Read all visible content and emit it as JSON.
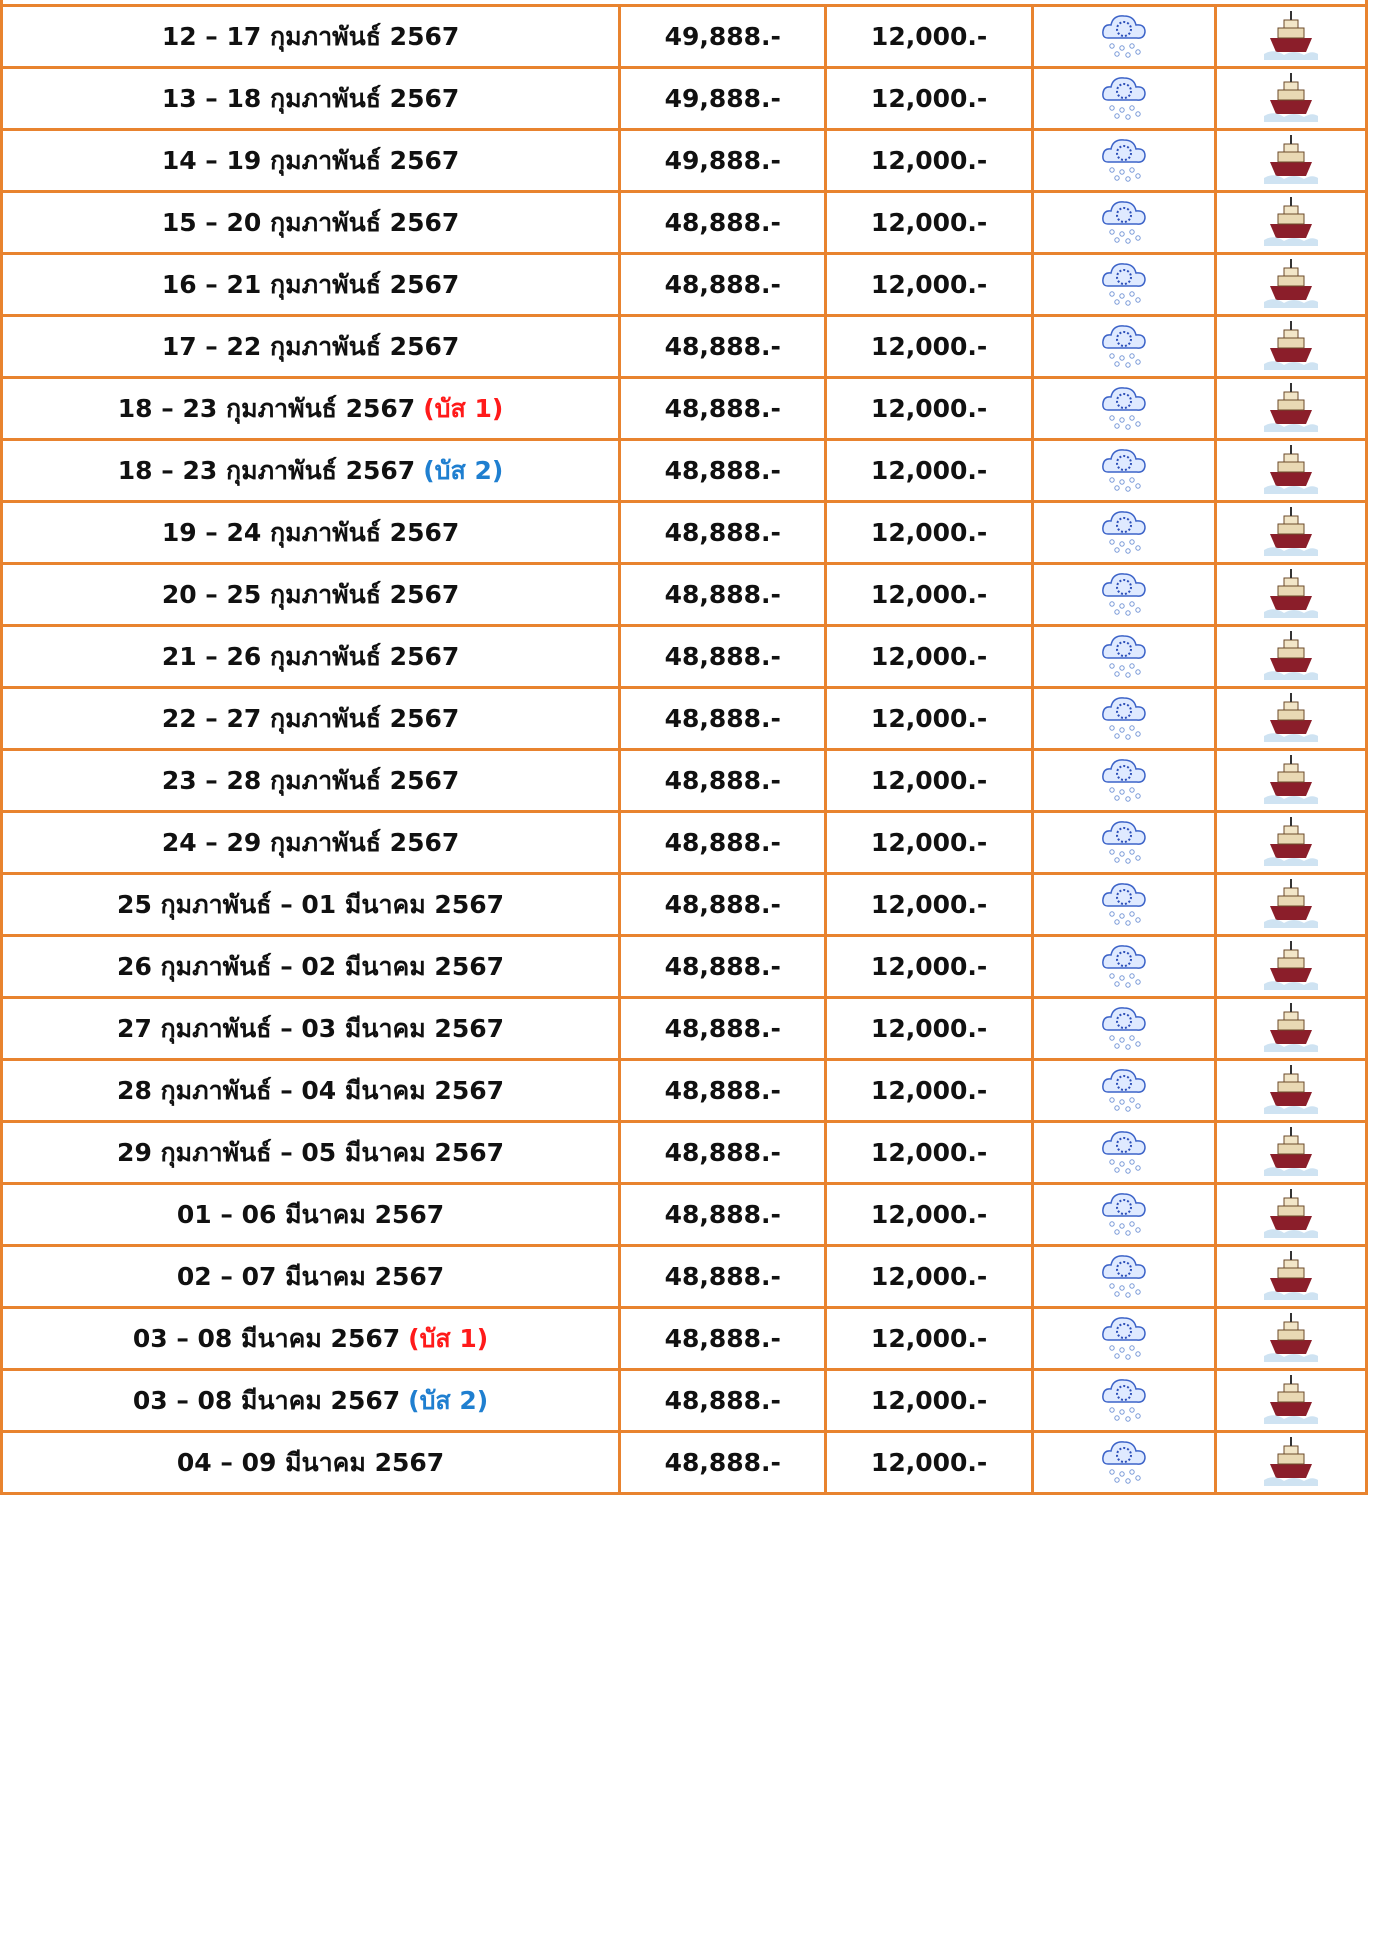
{
  "table": {
    "rows": [
      {
        "date": "12 – 17 กุมภาพันธ์ 2567",
        "price": "49,888.-",
        "extra": "12,000.-"
      },
      {
        "date": "13 – 18 กุมภาพันธ์ 2567",
        "price": "49,888.-",
        "extra": "12,000.-"
      },
      {
        "date": "14 – 19 กุมภาพันธ์ 2567",
        "price": "49,888.-",
        "extra": "12,000.-"
      },
      {
        "date": "15 – 20 กุมภาพันธ์ 2567",
        "price": "48,888.-",
        "extra": "12,000.-"
      },
      {
        "date": "16 – 21 กุมภาพันธ์ 2567",
        "price": "48,888.-",
        "extra": "12,000.-"
      },
      {
        "date": "17 – 22 กุมภาพันธ์ 2567",
        "price": "48,888.-",
        "extra": "12,000.-"
      },
      {
        "date": "18 – 23 กุมภาพันธ์ 2567",
        "bus": "(บัส 1)",
        "bus_color": "#ff1a1a",
        "price": "48,888.-",
        "extra": "12,000.-"
      },
      {
        "date": "18 – 23 กุมภาพันธ์ 2567",
        "bus": "(บัส 2)",
        "bus_color": "#1f7fd0",
        "price": "48,888.-",
        "extra": "12,000.-"
      },
      {
        "date": "19 – 24 กุมภาพันธ์ 2567",
        "price": "48,888.-",
        "extra": "12,000.-"
      },
      {
        "date": "20 – 25 กุมภาพันธ์ 2567",
        "price": "48,888.-",
        "extra": "12,000.-"
      },
      {
        "date": "21 – 26 กุมภาพันธ์ 2567",
        "price": "48,888.-",
        "extra": "12,000.-"
      },
      {
        "date": "22 – 27 กุมภาพันธ์ 2567",
        "price": "48,888.-",
        "extra": "12,000.-"
      },
      {
        "date": "23 – 28 กุมภาพันธ์ 2567",
        "price": "48,888.-",
        "extra": "12,000.-"
      },
      {
        "date": "24 – 29 กุมภาพันธ์ 2567",
        "price": "48,888.-",
        "extra": "12,000.-"
      },
      {
        "date": "25 กุมภาพันธ์ – 01 มีนาคม 2567",
        "price": "48,888.-",
        "extra": "12,000.-"
      },
      {
        "date": "26 กุมภาพันธ์ – 02 มีนาคม 2567",
        "price": "48,888.-",
        "extra": "12,000.-"
      },
      {
        "date": "27 กุมภาพันธ์ – 03 มีนาคม 2567",
        "price": "48,888.-",
        "extra": "12,000.-"
      },
      {
        "date": "28 กุมภาพันธ์ – 04 มีนาคม 2567",
        "price": "48,888.-",
        "extra": "12,000.-"
      },
      {
        "date": "29 กุมภาพันธ์ – 05 มีนาคม 2567",
        "price": "48,888.-",
        "extra": "12,000.-"
      },
      {
        "date": "01 – 06 มีนาคม 2567",
        "price": "48,888.-",
        "extra": "12,000.-"
      },
      {
        "date": "02 – 07 มีนาคม 2567",
        "price": "48,888.-",
        "extra": "12,000.-"
      },
      {
        "date": "03 – 08 มีนาคม 2567",
        "bus": "(บัส 1)",
        "bus_color": "#ff1a1a",
        "price": "48,888.-",
        "extra": "12,000.-"
      },
      {
        "date": "03 – 08 มีนาคม 2567",
        "bus": "(บัส 2)",
        "bus_color": "#1f7fd0",
        "price": "48,888.-",
        "extra": "12,000.-"
      },
      {
        "date": "04 – 09 มีนาคม 2567",
        "price": "48,888.-",
        "extra": "12,000.-"
      }
    ]
  }
}
